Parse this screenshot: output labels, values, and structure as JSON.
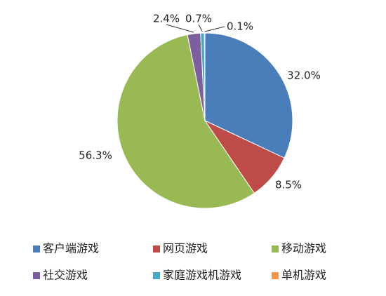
{
  "chart_data": {
    "type": "pie",
    "categories": [
      "客户端游戏",
      "网页游戏",
      "移动游戏",
      "社交游戏",
      "家庭游戏机游戏",
      "单机游戏"
    ],
    "values": [
      32.0,
      8.5,
      56.3,
      2.4,
      0.7,
      0.1
    ],
    "value_labels": [
      "32.0%",
      "8.5%",
      "56.3%",
      "2.4%",
      "0.7%",
      "0.1%"
    ],
    "colors": [
      "#4a7ebb",
      "#be4b48",
      "#98b954",
      "#7d5fa0",
      "#46aac5",
      "#f79646"
    ],
    "legend": "bottom"
  }
}
